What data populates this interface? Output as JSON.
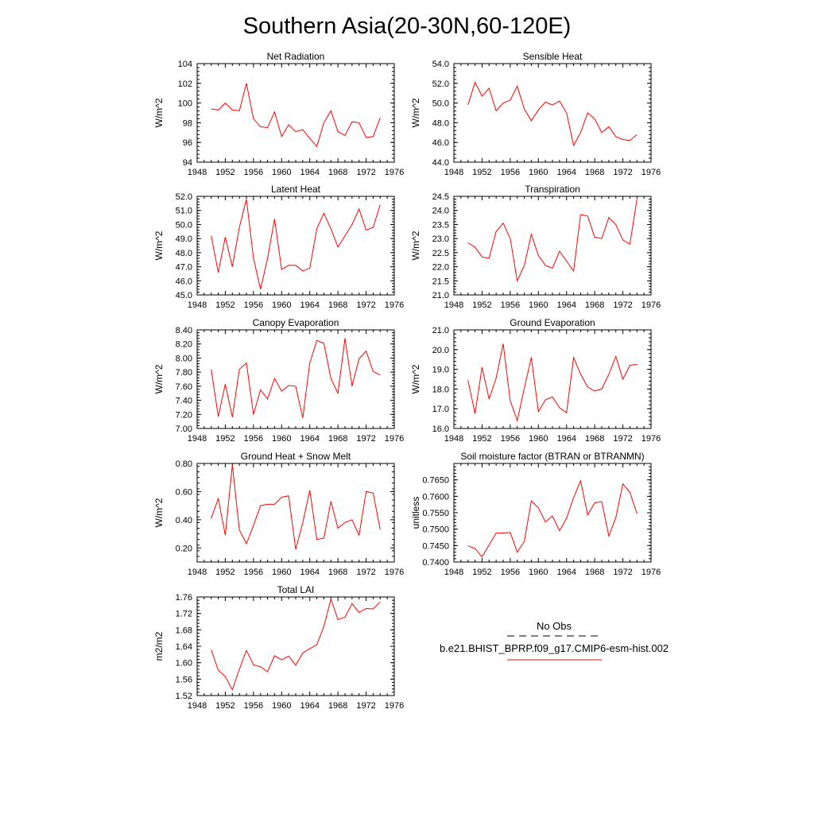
{
  "figure": {
    "title": "Southern Asia(20-30N,60-120E)",
    "legend": {
      "obs_label": "No Obs",
      "model_label": "b.e21.BHIST_BPRP.f09_g17.CMIP6-esm-hist.002",
      "obs_color": "#000000",
      "model_color": "#ff0000"
    }
  },
  "chart_data": [
    {
      "type": "line",
      "title": "Net Radiation",
      "ylabel": "W/m^2",
      "xlim": [
        1948,
        1976
      ],
      "ylim": [
        94,
        104
      ],
      "xticks": [
        "1948",
        "1952",
        "1956",
        "1960",
        "1964",
        "1968",
        "1972",
        "1976"
      ],
      "yticks": [
        "94",
        "96",
        "98",
        "100",
        "102",
        "104"
      ],
      "x": [
        1950,
        1951,
        1952,
        1953,
        1954,
        1955,
        1956,
        1957,
        1958,
        1959,
        1960,
        1961,
        1962,
        1963,
        1964,
        1965,
        1966,
        1967,
        1968,
        1969,
        1970,
        1971,
        1972,
        1973,
        1974
      ],
      "series": [
        {
          "name": "b.e21.BHIST_BPRP.f09_g17.CMIP6-esm-hist.002",
          "color": "#ff0000",
          "values": [
            99.4,
            99.3,
            100.0,
            99.3,
            99.2,
            102.0,
            98.4,
            97.6,
            97.5,
            99.1,
            96.6,
            97.8,
            97.1,
            97.3,
            96.4,
            95.6,
            98.0,
            99.2,
            97.1,
            96.7,
            98.1,
            98.0,
            96.5,
            96.6,
            98.5
          ]
        }
      ]
    },
    {
      "type": "line",
      "title": "Sensible Heat",
      "ylabel": "W/m^2",
      "xlim": [
        1948,
        1976
      ],
      "ylim": [
        44,
        54
      ],
      "xticks": [
        "1948",
        "1952",
        "1956",
        "1960",
        "1964",
        "1968",
        "1972",
        "1976"
      ],
      "yticks": [
        "44.0",
        "46.0",
        "48.0",
        "50.0",
        "52.0",
        "54.0"
      ],
      "x": [
        1950,
        1951,
        1952,
        1953,
        1954,
        1955,
        1956,
        1957,
        1958,
        1959,
        1960,
        1961,
        1962,
        1963,
        1964,
        1965,
        1966,
        1967,
        1968,
        1969,
        1970,
        1971,
        1972,
        1973,
        1974
      ],
      "series": [
        {
          "name": "b.e21.BHIST_BPRP.f09_g17.CMIP6-esm-hist.002",
          "color": "#ff0000",
          "values": [
            49.8,
            52.1,
            50.7,
            51.5,
            49.2,
            50.0,
            50.3,
            51.7,
            49.4,
            48.2,
            49.3,
            50.1,
            49.8,
            50.2,
            49.0,
            45.7,
            47.0,
            49.0,
            48.4,
            47.0,
            47.6,
            46.6,
            46.3,
            46.2,
            46.8
          ]
        }
      ]
    },
    {
      "type": "line",
      "title": "Latent Heat",
      "ylabel": "W/m^2",
      "xlim": [
        1948,
        1976
      ],
      "ylim": [
        45,
        52
      ],
      "xticks": [
        "1948",
        "1952",
        "1956",
        "1960",
        "1964",
        "1968",
        "1972",
        "1976"
      ],
      "yticks": [
        "45.0",
        "46.0",
        "47.0",
        "48.0",
        "49.0",
        "50.0",
        "51.0",
        "52.0"
      ],
      "x": [
        1950,
        1951,
        1952,
        1953,
        1954,
        1955,
        1956,
        1957,
        1958,
        1959,
        1960,
        1961,
        1962,
        1963,
        1964,
        1965,
        1966,
        1967,
        1968,
        1969,
        1970,
        1971,
        1972,
        1973,
        1974
      ],
      "series": [
        {
          "name": "b.e21.BHIST_BPRP.f09_g17.CMIP6-esm-hist.002",
          "color": "#ff0000",
          "values": [
            49.2,
            46.6,
            49.1,
            47.0,
            49.8,
            51.8,
            47.6,
            45.4,
            47.6,
            50.4,
            46.8,
            47.1,
            47.1,
            46.7,
            46.9,
            49.7,
            50.8,
            49.7,
            48.4,
            49.2,
            50.0,
            51.1,
            49.6,
            49.8,
            51.4
          ]
        }
      ]
    },
    {
      "type": "line",
      "title": "Transpiration",
      "ylabel": "W/m^2",
      "xlim": [
        1948,
        1976
      ],
      "ylim": [
        21,
        24.5
      ],
      "xticks": [
        "1948",
        "1952",
        "1956",
        "1960",
        "1964",
        "1968",
        "1972",
        "1976"
      ],
      "yticks": [
        "21.0",
        "21.5",
        "22.0",
        "22.5",
        "23.0",
        "23.5",
        "24.0",
        "24.5"
      ],
      "x": [
        1950,
        1951,
        1952,
        1953,
        1954,
        1955,
        1956,
        1957,
        1958,
        1959,
        1960,
        1961,
        1962,
        1963,
        1964,
        1965,
        1966,
        1967,
        1968,
        1969,
        1970,
        1971,
        1972,
        1973,
        1974
      ],
      "series": [
        {
          "name": "b.e21.BHIST_BPRP.f09_g17.CMIP6-esm-hist.002",
          "color": "#ff0000",
          "values": [
            22.85,
            22.7,
            22.35,
            22.3,
            23.25,
            23.55,
            23.0,
            21.5,
            22.05,
            23.15,
            22.4,
            22.05,
            21.95,
            22.55,
            22.2,
            21.85,
            23.85,
            23.8,
            23.05,
            23.0,
            23.75,
            23.5,
            22.95,
            22.8,
            24.4
          ]
        }
      ]
    },
    {
      "type": "line",
      "title": "Canopy Evaporation",
      "ylabel": "W/m^2",
      "xlim": [
        1948,
        1976
      ],
      "ylim": [
        7.0,
        8.4
      ],
      "xticks": [
        "1948",
        "1952",
        "1956",
        "1960",
        "1964",
        "1968",
        "1972",
        "1976"
      ],
      "yticks": [
        "7.00",
        "7.20",
        "7.40",
        "7.60",
        "7.80",
        "8.00",
        "8.20",
        "8.40"
      ],
      "x": [
        1950,
        1951,
        1952,
        1953,
        1954,
        1955,
        1956,
        1957,
        1958,
        1959,
        1960,
        1961,
        1962,
        1963,
        1964,
        1965,
        1966,
        1967,
        1968,
        1969,
        1970,
        1971,
        1972,
        1973,
        1974
      ],
      "series": [
        {
          "name": "b.e21.BHIST_BPRP.f09_g17.CMIP6-esm-hist.002",
          "color": "#ff0000",
          "values": [
            7.84,
            7.17,
            7.63,
            7.16,
            7.84,
            7.93,
            7.2,
            7.55,
            7.42,
            7.71,
            7.53,
            7.61,
            7.6,
            7.15,
            7.93,
            8.25,
            8.21,
            7.71,
            7.5,
            8.28,
            7.6,
            7.99,
            8.1,
            7.81,
            7.76
          ]
        }
      ]
    },
    {
      "type": "line",
      "title": "Ground Evaporation",
      "ylabel": "W/m^2",
      "xlim": [
        1948,
        1976
      ],
      "ylim": [
        16,
        21
      ],
      "xticks": [
        "1948",
        "1952",
        "1956",
        "1960",
        "1964",
        "1968",
        "1972",
        "1976"
      ],
      "yticks": [
        "16.0",
        "17.0",
        "18.0",
        "19.0",
        "20.0",
        "21.0"
      ],
      "x": [
        1950,
        1951,
        1952,
        1953,
        1954,
        1955,
        1956,
        1957,
        1958,
        1959,
        1960,
        1961,
        1962,
        1963,
        1964,
        1965,
        1966,
        1967,
        1968,
        1969,
        1970,
        1971,
        1972,
        1973,
        1974
      ],
      "series": [
        {
          "name": "b.e21.BHIST_BPRP.f09_g17.CMIP6-esm-hist.002",
          "color": "#ff0000",
          "values": [
            18.45,
            16.75,
            19.1,
            17.5,
            18.55,
            20.3,
            17.4,
            16.4,
            18.05,
            19.6,
            16.85,
            17.45,
            17.6,
            17.05,
            16.8,
            19.6,
            18.75,
            18.1,
            17.9,
            18.0,
            18.75,
            19.65,
            18.5,
            19.2,
            19.25
          ]
        }
      ]
    },
    {
      "type": "line",
      "title": "Ground Heat + Snow Melt",
      "ylabel": "W/m^2",
      "xlim": [
        1948,
        1976
      ],
      "ylim": [
        0.1,
        0.8
      ],
      "xticks": [
        "1948",
        "1952",
        "1956",
        "1960",
        "1964",
        "1968",
        "1972",
        "1976"
      ],
      "yticks": [
        "0.20",
        "0.40",
        "0.60",
        "0.80"
      ],
      "x": [
        1950,
        1951,
        1952,
        1953,
        1954,
        1955,
        1956,
        1957,
        1958,
        1959,
        1960,
        1961,
        1962,
        1963,
        1964,
        1965,
        1966,
        1967,
        1968,
        1969,
        1970,
        1971,
        1972,
        1973,
        1974
      ],
      "series": [
        {
          "name": "b.e21.BHIST_BPRP.f09_g17.CMIP6-esm-hist.002",
          "color": "#ff0000",
          "values": [
            0.41,
            0.55,
            0.29,
            0.79,
            0.33,
            0.23,
            0.36,
            0.5,
            0.51,
            0.51,
            0.56,
            0.57,
            0.19,
            0.38,
            0.61,
            0.26,
            0.27,
            0.53,
            0.34,
            0.38,
            0.4,
            0.29,
            0.6,
            0.59,
            0.33
          ]
        }
      ]
    },
    {
      "type": "line",
      "title": "Soil moisture factor (BTRAN or BTRANMN)",
      "ylabel": "unitless",
      "xlim": [
        1948,
        1976
      ],
      "ylim": [
        0.74,
        0.77
      ],
      "xticks": [
        "1948",
        "1952",
        "1956",
        "1960",
        "1964",
        "1968",
        "1972",
        "1976"
      ],
      "yticks": [
        "0.7400",
        "0.7450",
        "0.7500",
        "0.7550",
        "0.7600",
        "0.7650"
      ],
      "x": [
        1950,
        1951,
        1952,
        1953,
        1954,
        1955,
        1956,
        1957,
        1958,
        1959,
        1960,
        1961,
        1962,
        1963,
        1964,
        1965,
        1966,
        1967,
        1968,
        1969,
        1970,
        1971,
        1972,
        1973,
        1974
      ],
      "series": [
        {
          "name": "b.e21.BHIST_BPRP.f09_g17.CMIP6-esm-hist.002",
          "color": "#ff0000",
          "values": [
            0.7449,
            0.7441,
            0.7416,
            0.7452,
            0.7488,
            0.7488,
            0.749,
            0.743,
            0.7463,
            0.7586,
            0.7565,
            0.7522,
            0.754,
            0.7495,
            0.7533,
            0.7596,
            0.7647,
            0.7543,
            0.758,
            0.7584,
            0.7479,
            0.7535,
            0.7638,
            0.7612,
            0.7547
          ]
        }
      ]
    },
    {
      "type": "line",
      "title": "Total LAI",
      "ylabel": "m2/m2",
      "xlim": [
        1948,
        1976
      ],
      "ylim": [
        1.52,
        1.76
      ],
      "xticks": [
        "1948",
        "1952",
        "1956",
        "1960",
        "1964",
        "1968",
        "1972",
        "1976"
      ],
      "yticks": [
        "1.52",
        "1.56",
        "1.60",
        "1.64",
        "1.68",
        "1.72",
        "1.76"
      ],
      "x": [
        1950,
        1951,
        1952,
        1953,
        1954,
        1955,
        1956,
        1957,
        1958,
        1959,
        1960,
        1961,
        1962,
        1963,
        1964,
        1965,
        1966,
        1967,
        1968,
        1969,
        1970,
        1971,
        1972,
        1973,
        1974
      ],
      "series": [
        {
          "name": "b.e21.BHIST_BPRP.f09_g17.CMIP6-esm-hist.002",
          "color": "#ff0000",
          "values": [
            1.631,
            1.582,
            1.566,
            1.534,
            1.584,
            1.63,
            1.595,
            1.59,
            1.578,
            1.617,
            1.607,
            1.616,
            1.594,
            1.624,
            1.634,
            1.644,
            1.688,
            1.755,
            1.705,
            1.711,
            1.744,
            1.722,
            1.732,
            1.731,
            1.748
          ]
        }
      ]
    }
  ]
}
